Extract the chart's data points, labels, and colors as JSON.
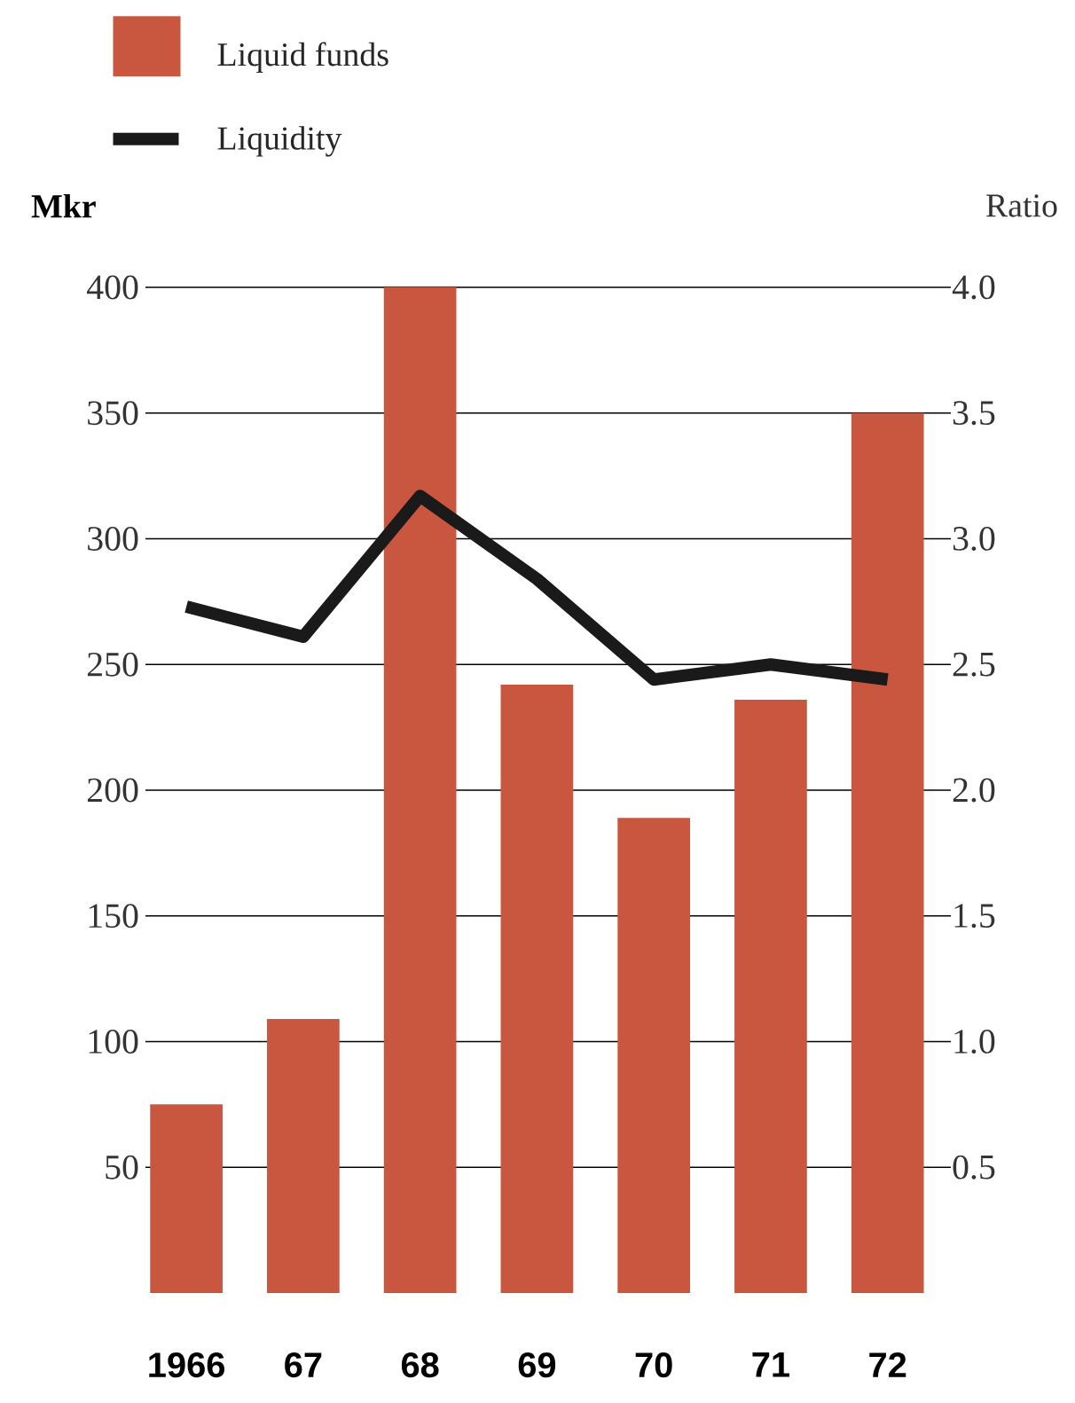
{
  "chart_data": {
    "type": "bar",
    "categories": [
      "1966",
      "67",
      "68",
      "69",
      "70",
      "71",
      "72"
    ],
    "ylabel": "Mkr",
    "y2label": "Ratio",
    "ylim": [
      0,
      400
    ],
    "yticks": [
      50,
      100,
      150,
      200,
      250,
      300,
      350,
      400
    ],
    "y2lim": [
      0,
      4
    ],
    "y2ticks": [
      0.5,
      {
        "value": 1,
        "label": "1.0"
      },
      1.5,
      {
        "value": 2,
        "label": "2.0"
      },
      2.5,
      {
        "value": 3,
        "label": "3.0"
      },
      3.5,
      {
        "value": 4,
        "label": "4.0"
      }
    ],
    "series": [
      {
        "name": "Liquid funds",
        "type": "bar",
        "color": "#c9563e",
        "values": [
          75,
          109,
          400,
          242,
          189,
          236,
          350
        ]
      },
      {
        "name": "Liquidity",
        "type": "line",
        "axis": "y2",
        "color": "#1a1a1a",
        "values": [
          2.73,
          2.61,
          3.17,
          2.84,
          2.44,
          2.5,
          2.44
        ]
      }
    ],
    "grid": "y",
    "legend": "top left"
  }
}
